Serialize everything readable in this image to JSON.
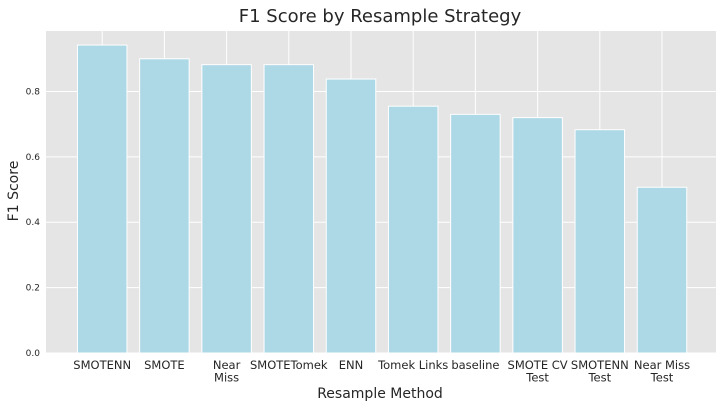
{
  "chart_data": {
    "type": "bar",
    "title": "F1 Score by Resample Strategy",
    "xlabel": "Resample Method",
    "ylabel": "F1 Score",
    "categories": [
      [
        "SMOTENN"
      ],
      [
        "SMOTE"
      ],
      [
        "Near",
        "Miss"
      ],
      [
        "SMOTETomek"
      ],
      [
        "ENN"
      ],
      [
        "Tomek Links"
      ],
      [
        "baseline"
      ],
      [
        "SMOTE CV",
        "Test"
      ],
      [
        "SMOTENN",
        "Test"
      ],
      [
        "Near Miss",
        "Test"
      ]
    ],
    "values": [
      0.942,
      0.9,
      0.882,
      0.882,
      0.838,
      0.755,
      0.73,
      0.72,
      0.683,
      0.507
    ],
    "ylim": [
      0,
      0.985
    ],
    "yticks": [
      "0.0",
      "0.2",
      "0.4",
      "0.6",
      "0.8"
    ],
    "grid": true,
    "bar_color": "#add8e6",
    "background_color": "#e5e5e5",
    "grid_color": "#ffffff"
  }
}
